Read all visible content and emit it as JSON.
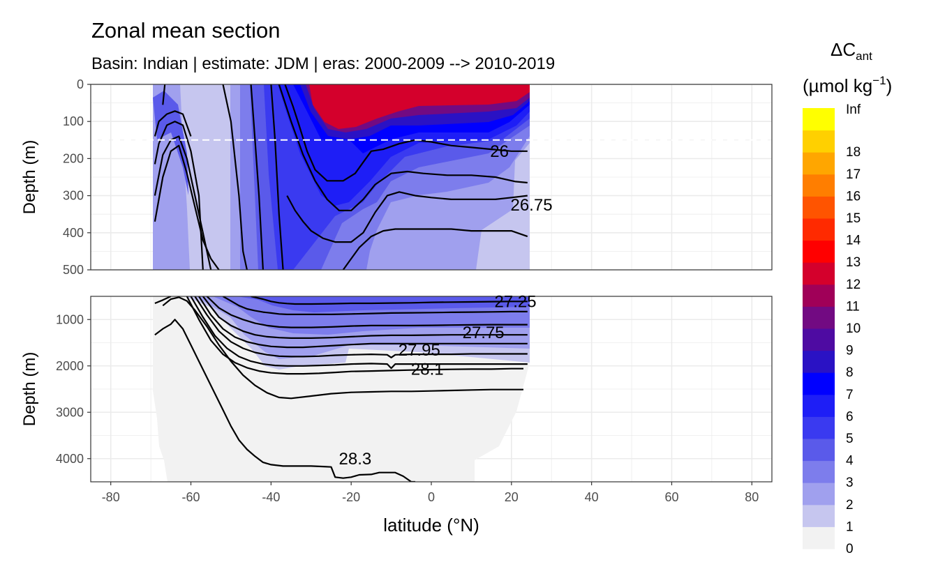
{
  "chart_data": {
    "type": "heatmap",
    "title": "Zonal mean section",
    "subtitle": "Basin: Indian | estimate: JDM  | eras: 2000-2009 --> 2010-2019",
    "xlabel": "latitude (°N)",
    "ylabel": "Depth (m)",
    "xlim": [
      -85,
      85
    ],
    "x_ticks": [
      -80,
      -60,
      -40,
      -20,
      0,
      20,
      40,
      60,
      80
    ],
    "grid": true,
    "reference_line_depth": 150,
    "panels": [
      {
        "name": "upper",
        "ylim": [
          0,
          500
        ],
        "y_ticks": [
          0,
          100,
          200,
          300,
          400,
          500
        ]
      },
      {
        "name": "lower",
        "ylim": [
          500,
          4500
        ],
        "y_ticks": [
          1000,
          2000,
          3000,
          4000
        ]
      }
    ],
    "legend": {
      "title_main": "ΔC",
      "title_sub": "ant",
      "unit_pre": "(µmol kg",
      "unit_sup": "−1",
      "unit_post": ")",
      "position": "right",
      "labels": [
        "0",
        "1",
        "2",
        "3",
        "4",
        "5",
        "6",
        "7",
        "8",
        "9",
        "10",
        "11",
        "12",
        "13",
        "14",
        "15",
        "16",
        "17",
        "18",
        "Inf"
      ],
      "colors": [
        "#f2f2f2",
        "#c6c6ef",
        "#a0a0ee",
        "#7d7dec",
        "#5a5aea",
        "#3a3af0",
        "#1e1ef6",
        "#0000ff",
        "#2a12c4",
        "#4e0ba2",
        "#720a82",
        "#a00058",
        "#d4002c",
        "#ff0000",
        "#ff2a00",
        "#ff5400",
        "#ff7e00",
        "#ffa600",
        "#ffd000",
        "#ffff00"
      ]
    },
    "contour_labels": [
      {
        "text": "26",
        "lat": 17,
        "depth": 180
      },
      {
        "text": "26.75",
        "lat": 25,
        "depth": 325
      },
      {
        "text": "27.25",
        "lat": 21,
        "depth": 610
      },
      {
        "text": "27.75",
        "lat": 13,
        "depth": 1280
      },
      {
        "text": "27.95",
        "lat": -3,
        "depth": 1660
      },
      {
        "text": "28.1",
        "lat": -1,
        "depth": 2070
      },
      {
        "text": "28.3",
        "lat": -19,
        "depth": 4000
      }
    ],
    "isopycnals": [
      {
        "panel": "upper",
        "lat": [
          -67,
          -66.5
        ],
        "depth": [
          55,
          0
        ]
      },
      {
        "panel": "upper",
        "lat": [
          -69,
          -68,
          -66,
          -64,
          -62,
          -60
        ],
        "depth": [
          140,
          100,
          80,
          72,
          80,
          140
        ]
      },
      {
        "panel": "upper",
        "lat": [
          -69,
          -68,
          -66,
          -64,
          -62,
          -60,
          -58,
          -57
        ],
        "depth": [
          215,
          160,
          110,
          100,
          110,
          180,
          300,
          500
        ]
      },
      {
        "panel": "upper",
        "lat": [
          -69,
          -67,
          -65,
          -63,
          -61,
          -59,
          -57,
          -55
        ],
        "depth": [
          300,
          190,
          150,
          140,
          200,
          300,
          400,
          500
        ]
      },
      {
        "panel": "upper",
        "lat": [
          -69,
          -67,
          -65,
          -63,
          -61,
          -59,
          -57,
          -55,
          -53
        ],
        "depth": [
          370,
          250,
          180,
          165,
          240,
          330,
          420,
          470,
          500
        ]
      },
      {
        "panel": "upper",
        "lat": [
          -52,
          -50,
          -48,
          -47,
          -46
        ],
        "depth": [
          0,
          100,
          300,
          450,
          500
        ]
      },
      {
        "panel": "upper",
        "lat": [
          -45,
          -44,
          -43,
          -42
        ],
        "depth": [
          0,
          150,
          300,
          500
        ]
      },
      {
        "panel": "upper",
        "lat": [
          -40,
          -39,
          -38,
          -37
        ],
        "depth": [
          0,
          150,
          350,
          500
        ]
      },
      {
        "panel": "upper",
        "lat": [
          -36.5,
          -34.5,
          -33,
          -31,
          -29,
          -26,
          -22,
          -19,
          -17,
          -15,
          -12,
          -8,
          -4,
          0,
          5,
          10,
          15,
          20,
          24
        ],
        "depth": [
          0,
          60,
          110,
          180,
          230,
          260,
          260,
          240,
          210,
          180,
          175,
          160,
          150,
          155,
          165,
          170,
          175,
          180,
          180
        ]
      },
      {
        "panel": "upper",
        "lat": [
          -38,
          -35,
          -32,
          -29,
          -26,
          -23,
          -20,
          -17,
          -14,
          -10,
          -6,
          -2,
          4,
          10,
          16,
          21,
          24
        ],
        "depth": [
          0,
          100,
          190,
          260,
          310,
          340,
          340,
          310,
          270,
          240,
          235,
          240,
          245,
          245,
          250,
          262,
          265
        ]
      },
      {
        "panel": "upper",
        "lat": [
          -36,
          -34,
          -32,
          -30,
          -27,
          -24,
          -20,
          -17,
          -14,
          -11,
          -8,
          -4,
          0,
          5,
          10,
          16,
          20,
          24
        ],
        "depth": [
          300,
          340,
          370,
          395,
          415,
          425,
          425,
          400,
          345,
          300,
          290,
          300,
          305,
          310,
          310,
          310,
          305,
          300
        ]
      },
      {
        "panel": "upper",
        "lat": [
          -22,
          -20,
          -18,
          -15,
          -12,
          -9,
          -5,
          0,
          5,
          10,
          15,
          20,
          24
        ],
        "depth": [
          500,
          470,
          440,
          410,
          395,
          390,
          390,
          390,
          390,
          395,
          395,
          395,
          410
        ]
      },
      {
        "panel": "lower",
        "lat": [
          -69,
          -67,
          -65
        ],
        "depth": [
          650,
          580,
          500
        ]
      },
      {
        "panel": "lower",
        "lat": [
          -45,
          -42,
          -40,
          -38,
          -36,
          -34,
          -30,
          -25,
          -20,
          -15,
          -10,
          -5,
          0,
          5,
          10,
          15,
          20,
          24
        ],
        "depth": [
          500,
          560,
          610,
          640,
          655,
          665,
          665,
          660,
          650,
          650,
          645,
          640,
          630,
          625,
          620,
          615,
          610,
          610
        ]
      },
      {
        "panel": "lower",
        "lat": [
          -52,
          -50,
          -48,
          -46,
          -44,
          -42,
          -40,
          -38,
          -36,
          -34,
          -30,
          -25,
          -20,
          -15,
          -10,
          -5,
          0,
          5,
          10,
          15,
          20,
          24
        ],
        "depth": [
          500,
          600,
          700,
          770,
          810,
          840,
          860,
          880,
          890,
          890,
          890,
          890,
          880,
          870,
          860,
          855,
          850,
          845,
          840,
          835,
          830,
          830
        ]
      },
      {
        "panel": "lower",
        "lat": [
          -56,
          -53,
          -50,
          -47,
          -44,
          -41,
          -38,
          -35,
          -30,
          -25,
          -20,
          -15,
          -10,
          -5,
          0,
          5,
          10,
          15,
          20,
          24
        ],
        "depth": [
          500,
          750,
          900,
          1000,
          1080,
          1130,
          1160,
          1170,
          1170,
          1160,
          1140,
          1130,
          1130,
          1130,
          1125,
          1120,
          1115,
          1110,
          1110,
          1110
        ]
      },
      {
        "panel": "lower",
        "lat": [
          -57,
          -53,
          -50,
          -47,
          -44,
          -41,
          -38,
          -35,
          -30,
          -25,
          -20,
          -15,
          -10,
          -5,
          0,
          5,
          10,
          15,
          20,
          24
        ],
        "depth": [
          500,
          950,
          1130,
          1250,
          1330,
          1370,
          1390,
          1400,
          1400,
          1390,
          1370,
          1350,
          1340,
          1340,
          1335,
          1330,
          1330,
          1330,
          1330,
          1330
        ]
      },
      {
        "panel": "lower",
        "lat": [
          -58,
          -55,
          -52,
          -49,
          -46,
          -43,
          -40,
          -36,
          -32,
          -28,
          -24,
          -20,
          -15,
          -10,
          -5,
          0,
          5,
          10,
          15,
          20,
          24
        ],
        "depth": [
          500,
          900,
          1200,
          1380,
          1480,
          1540,
          1580,
          1600,
          1600,
          1580,
          1560,
          1540,
          1520,
          1520,
          1520,
          1520,
          1520,
          1520,
          1520,
          1520,
          1520
        ]
      },
      {
        "panel": "lower",
        "lat": [
          -59,
          -56,
          -53,
          -50,
          -47,
          -44,
          -41,
          -38,
          -35,
          -32,
          -28,
          -24,
          -20,
          -15,
          -11,
          -10,
          -9,
          -5,
          0,
          5,
          10,
          15,
          20,
          24
        ],
        "depth": [
          500,
          900,
          1250,
          1480,
          1620,
          1710,
          1760,
          1790,
          1800,
          1800,
          1790,
          1770,
          1760,
          1750,
          1760,
          1820,
          1760,
          1750,
          1750,
          1750,
          1740,
          1740,
          1740,
          1740
        ]
      },
      {
        "panel": "lower",
        "lat": [
          -60,
          -57,
          -54,
          -51,
          -48,
          -45,
          -42,
          -39,
          -36,
          -32,
          -28,
          -24,
          -20,
          -15,
          -11,
          -10,
          -9,
          -5,
          0,
          5,
          10,
          15,
          20,
          24
        ],
        "depth": [
          500,
          950,
          1350,
          1620,
          1800,
          1900,
          1960,
          1990,
          2000,
          2000,
          1990,
          1980,
          1960,
          1950,
          1960,
          2050,
          1960,
          1960,
          1960,
          1960,
          1960,
          1960,
          1960,
          1960
        ]
      },
      {
        "panel": "lower",
        "lat": [
          -61,
          -58,
          -55,
          -52,
          -49,
          -46,
          -43,
          -40,
          -36,
          -32,
          -28,
          -24,
          -20,
          -15,
          -10,
          -5,
          0,
          5,
          10,
          15,
          20,
          23
        ],
        "depth": [
          500,
          1000,
          1450,
          1750,
          1930,
          2040,
          2110,
          2150,
          2170,
          2170,
          2160,
          2140,
          2120,
          2110,
          2100,
          2090,
          2080,
          2075,
          2070,
          2070,
          2060,
          2060
        ]
      },
      {
        "panel": "lower",
        "lat": [
          -67,
          -65,
          -63,
          -61,
          -59,
          -56,
          -53,
          -50,
          -47,
          -44,
          -41,
          -38,
          -35,
          -30,
          -25,
          -20,
          -15,
          -10,
          -5,
          0,
          5,
          10,
          15,
          20,
          23
        ],
        "depth": [
          700,
          560,
          520,
          600,
          800,
          1150,
          1550,
          1900,
          2200,
          2420,
          2580,
          2680,
          2700,
          2650,
          2600,
          2570,
          2560,
          2550,
          2550,
          2540,
          2530,
          2520,
          2510,
          2510,
          2510
        ]
      },
      {
        "panel": "lower",
        "lat": [
          -69,
          -67,
          -65,
          -64,
          -62,
          -60,
          -58,
          -56,
          -54,
          -52,
          -50,
          -48,
          -46,
          -44,
          -42,
          -40,
          -37,
          -34,
          -30,
          -27,
          -25,
          -24,
          -22,
          -20,
          -18,
          -15,
          -13,
          -11,
          -10,
          -9,
          -7,
          -5,
          -4
        ],
        "depth": [
          1330,
          1200,
          1100,
          1000,
          1200,
          1550,
          1900,
          2250,
          2600,
          2950,
          3300,
          3600,
          3800,
          3950,
          4080,
          4130,
          4160,
          4160,
          4160,
          4170,
          4180,
          4400,
          4420,
          4400,
          4350,
          4340,
          4300,
          4300,
          4300,
          4300,
          4380,
          4500,
          4500
        ]
      }
    ]
  }
}
